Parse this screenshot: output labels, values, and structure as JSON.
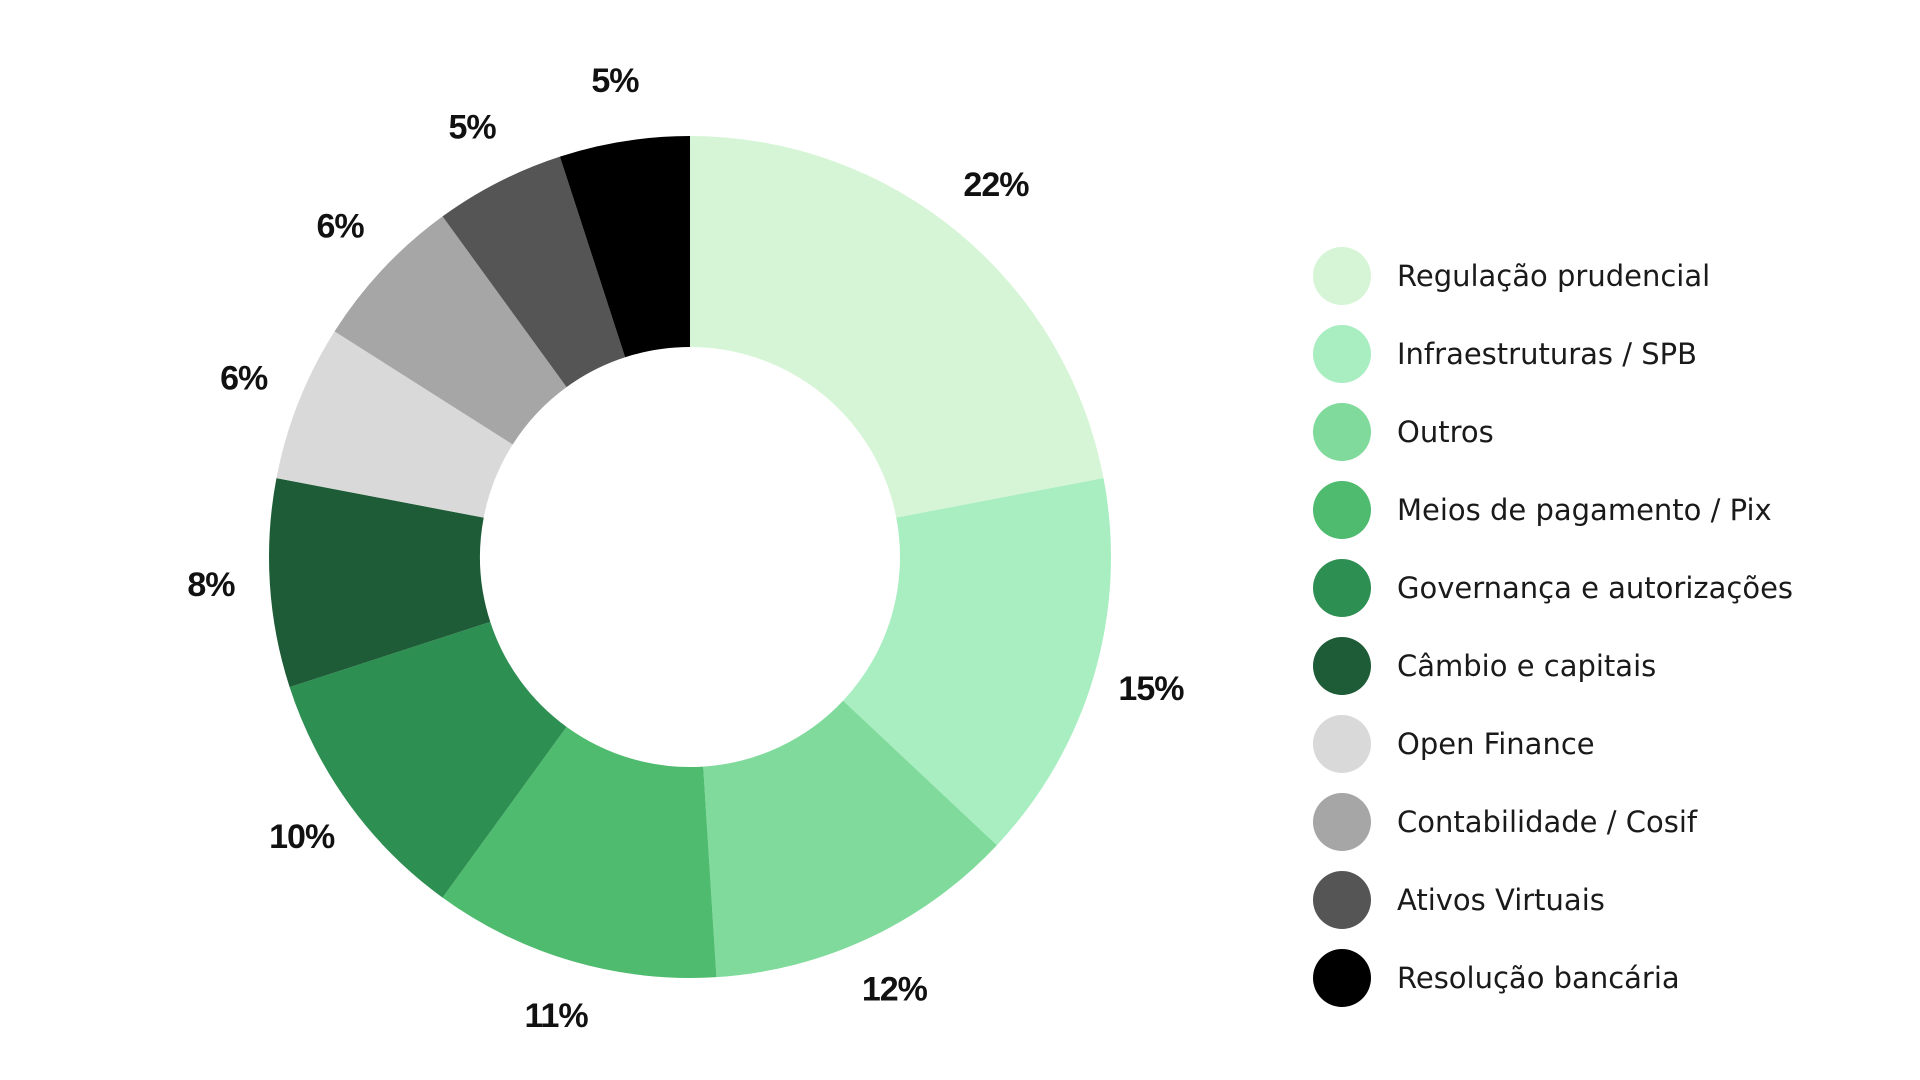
{
  "chart_data": {
    "type": "pie",
    "donut": true,
    "legend_position": "right",
    "categories": [
      "Regulação prudencial",
      "Infraestruturas / SPB",
      "Outros",
      "Meios de pagamento / Pix",
      "Governança e autorizações",
      "Câmbio e capitais",
      "Open Finance",
      "Contabilidade / Cosif",
      "Ativos Virtuais",
      "Resolução bancária"
    ],
    "values": [
      22,
      15,
      12,
      11,
      10,
      8,
      6,
      6,
      5,
      5
    ],
    "labels": [
      "22%",
      "15%",
      "12%",
      "11%",
      "10%",
      "8%",
      "6%",
      "6%",
      "5%",
      "5%"
    ],
    "colors": [
      "#d6f5d6",
      "#a8eec1",
      "#7fda9b",
      "#4fbb6f",
      "#2e8f52",
      "#1d5c36",
      "#d9d9d9",
      "#a6a6a6",
      "#555555",
      "#000000"
    ]
  }
}
